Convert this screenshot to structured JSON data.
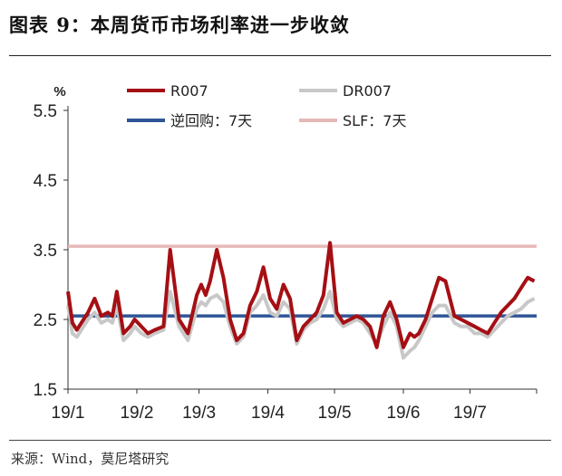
{
  "figure": {
    "title": "图表 9：本周货币市场利率进一步收敛",
    "source": "来源：Wind，莫尼塔研究"
  },
  "chart_data": {
    "type": "line",
    "ylabel": "%",
    "ylim": [
      1.5,
      5.5
    ],
    "yticks": [
      "1.5",
      "2.5",
      "3.5",
      "4.5",
      "5.5"
    ],
    "x_ticks": [
      "19/1",
      "19/2",
      "19/3",
      "19/4",
      "19/5",
      "19/6",
      "19/7"
    ],
    "x_range": [
      "2019-01-01",
      "2019-07-31"
    ],
    "legend_position": "top",
    "series": [
      {
        "name": "R007",
        "color": "#a50f14",
        "type": "line",
        "x": [
          "2019-01-01",
          "2019-01-03",
          "2019-01-05",
          "2019-01-08",
          "2019-01-10",
          "2019-01-13",
          "2019-01-16",
          "2019-01-19",
          "2019-01-21",
          "2019-01-23",
          "2019-01-26",
          "2019-01-29",
          "2019-01-31",
          "2019-02-03",
          "2019-02-06",
          "2019-02-09",
          "2019-02-13",
          "2019-02-16",
          "2019-02-20",
          "2019-02-24",
          "2019-02-28",
          "2019-03-02",
          "2019-03-04",
          "2019-03-06",
          "2019-03-09",
          "2019-03-12",
          "2019-03-15",
          "2019-03-18",
          "2019-03-21",
          "2019-03-24",
          "2019-03-27",
          "2019-03-30",
          "2019-04-02",
          "2019-04-05",
          "2019-04-08",
          "2019-04-11",
          "2019-04-14",
          "2019-04-17",
          "2019-04-20",
          "2019-04-23",
          "2019-04-26",
          "2019-04-29",
          "2019-05-02",
          "2019-05-05",
          "2019-05-08",
          "2019-05-11",
          "2019-05-14",
          "2019-05-17",
          "2019-05-20",
          "2019-05-23",
          "2019-05-26",
          "2019-05-29",
          "2019-06-01",
          "2019-06-04",
          "2019-06-06",
          "2019-06-08",
          "2019-06-11",
          "2019-06-14",
          "2019-06-17",
          "2019-06-20",
          "2019-06-24",
          "2019-06-27",
          "2019-06-30",
          "2019-07-03",
          "2019-07-06",
          "2019-07-09",
          "2019-07-12",
          "2019-07-15",
          "2019-07-18",
          "2019-07-21",
          "2019-07-24",
          "2019-07-27",
          "2019-07-30"
        ],
        "values": [
          2.9,
          2.45,
          2.35,
          2.5,
          2.6,
          2.8,
          2.55,
          2.6,
          2.55,
          2.9,
          2.3,
          2.4,
          2.5,
          2.4,
          2.3,
          2.35,
          2.4,
          3.5,
          2.5,
          2.3,
          2.85,
          3.0,
          2.85,
          3.05,
          3.5,
          3.1,
          2.5,
          2.2,
          2.3,
          2.7,
          2.9,
          3.25,
          2.8,
          2.65,
          3.0,
          2.8,
          2.2,
          2.4,
          2.5,
          2.6,
          2.85,
          3.6,
          2.6,
          2.45,
          2.5,
          2.55,
          2.5,
          2.4,
          2.1,
          2.55,
          2.75,
          2.5,
          2.1,
          2.3,
          2.25,
          2.3,
          2.5,
          2.8,
          3.1,
          3.05,
          2.55,
          2.5,
          2.45,
          2.4,
          2.35,
          2.3,
          2.45,
          2.6,
          2.7,
          2.8,
          2.95,
          3.1,
          3.05
        ]
      },
      {
        "name": "DR007",
        "color": "#c8c8c8",
        "type": "line",
        "x": [
          "2019-01-01",
          "2019-01-03",
          "2019-01-05",
          "2019-01-08",
          "2019-01-10",
          "2019-01-13",
          "2019-01-16",
          "2019-01-19",
          "2019-01-21",
          "2019-01-23",
          "2019-01-26",
          "2019-01-29",
          "2019-01-31",
          "2019-02-03",
          "2019-02-06",
          "2019-02-09",
          "2019-02-13",
          "2019-02-16",
          "2019-02-20",
          "2019-02-24",
          "2019-02-28",
          "2019-03-02",
          "2019-03-04",
          "2019-03-06",
          "2019-03-09",
          "2019-03-12",
          "2019-03-15",
          "2019-03-18",
          "2019-03-21",
          "2019-03-24",
          "2019-03-27",
          "2019-03-30",
          "2019-04-02",
          "2019-04-05",
          "2019-04-08",
          "2019-04-11",
          "2019-04-14",
          "2019-04-17",
          "2019-04-20",
          "2019-04-23",
          "2019-04-26",
          "2019-04-29",
          "2019-05-02",
          "2019-05-05",
          "2019-05-08",
          "2019-05-11",
          "2019-05-14",
          "2019-05-17",
          "2019-05-20",
          "2019-05-23",
          "2019-05-26",
          "2019-05-29",
          "2019-06-01",
          "2019-06-04",
          "2019-06-06",
          "2019-06-08",
          "2019-06-11",
          "2019-06-14",
          "2019-06-17",
          "2019-06-20",
          "2019-06-24",
          "2019-06-27",
          "2019-06-30",
          "2019-07-03",
          "2019-07-06",
          "2019-07-09",
          "2019-07-12",
          "2019-07-15",
          "2019-07-18",
          "2019-07-21",
          "2019-07-24",
          "2019-07-27",
          "2019-07-30"
        ],
        "values": [
          2.7,
          2.3,
          2.25,
          2.4,
          2.5,
          2.6,
          2.45,
          2.5,
          2.45,
          2.7,
          2.2,
          2.3,
          2.4,
          2.3,
          2.25,
          2.3,
          2.35,
          2.9,
          2.4,
          2.2,
          2.65,
          2.75,
          2.7,
          2.8,
          2.85,
          2.75,
          2.4,
          2.15,
          2.25,
          2.6,
          2.7,
          2.85,
          2.6,
          2.55,
          2.75,
          2.65,
          2.15,
          2.35,
          2.45,
          2.5,
          2.65,
          2.9,
          2.5,
          2.4,
          2.45,
          2.5,
          2.45,
          2.3,
          2.15,
          2.4,
          2.6,
          2.4,
          1.95,
          2.05,
          2.1,
          2.2,
          2.4,
          2.6,
          2.7,
          2.7,
          2.45,
          2.4,
          2.4,
          2.3,
          2.3,
          2.25,
          2.35,
          2.45,
          2.55,
          2.6,
          2.65,
          2.75,
          2.8
        ]
      },
      {
        "name": "逆回购：7天",
        "color": "#2f5597",
        "type": "hline",
        "value": 2.55
      },
      {
        "name": "SLF：7天",
        "color": "#e6b8b7",
        "type": "hline",
        "value": 3.55
      }
    ]
  }
}
